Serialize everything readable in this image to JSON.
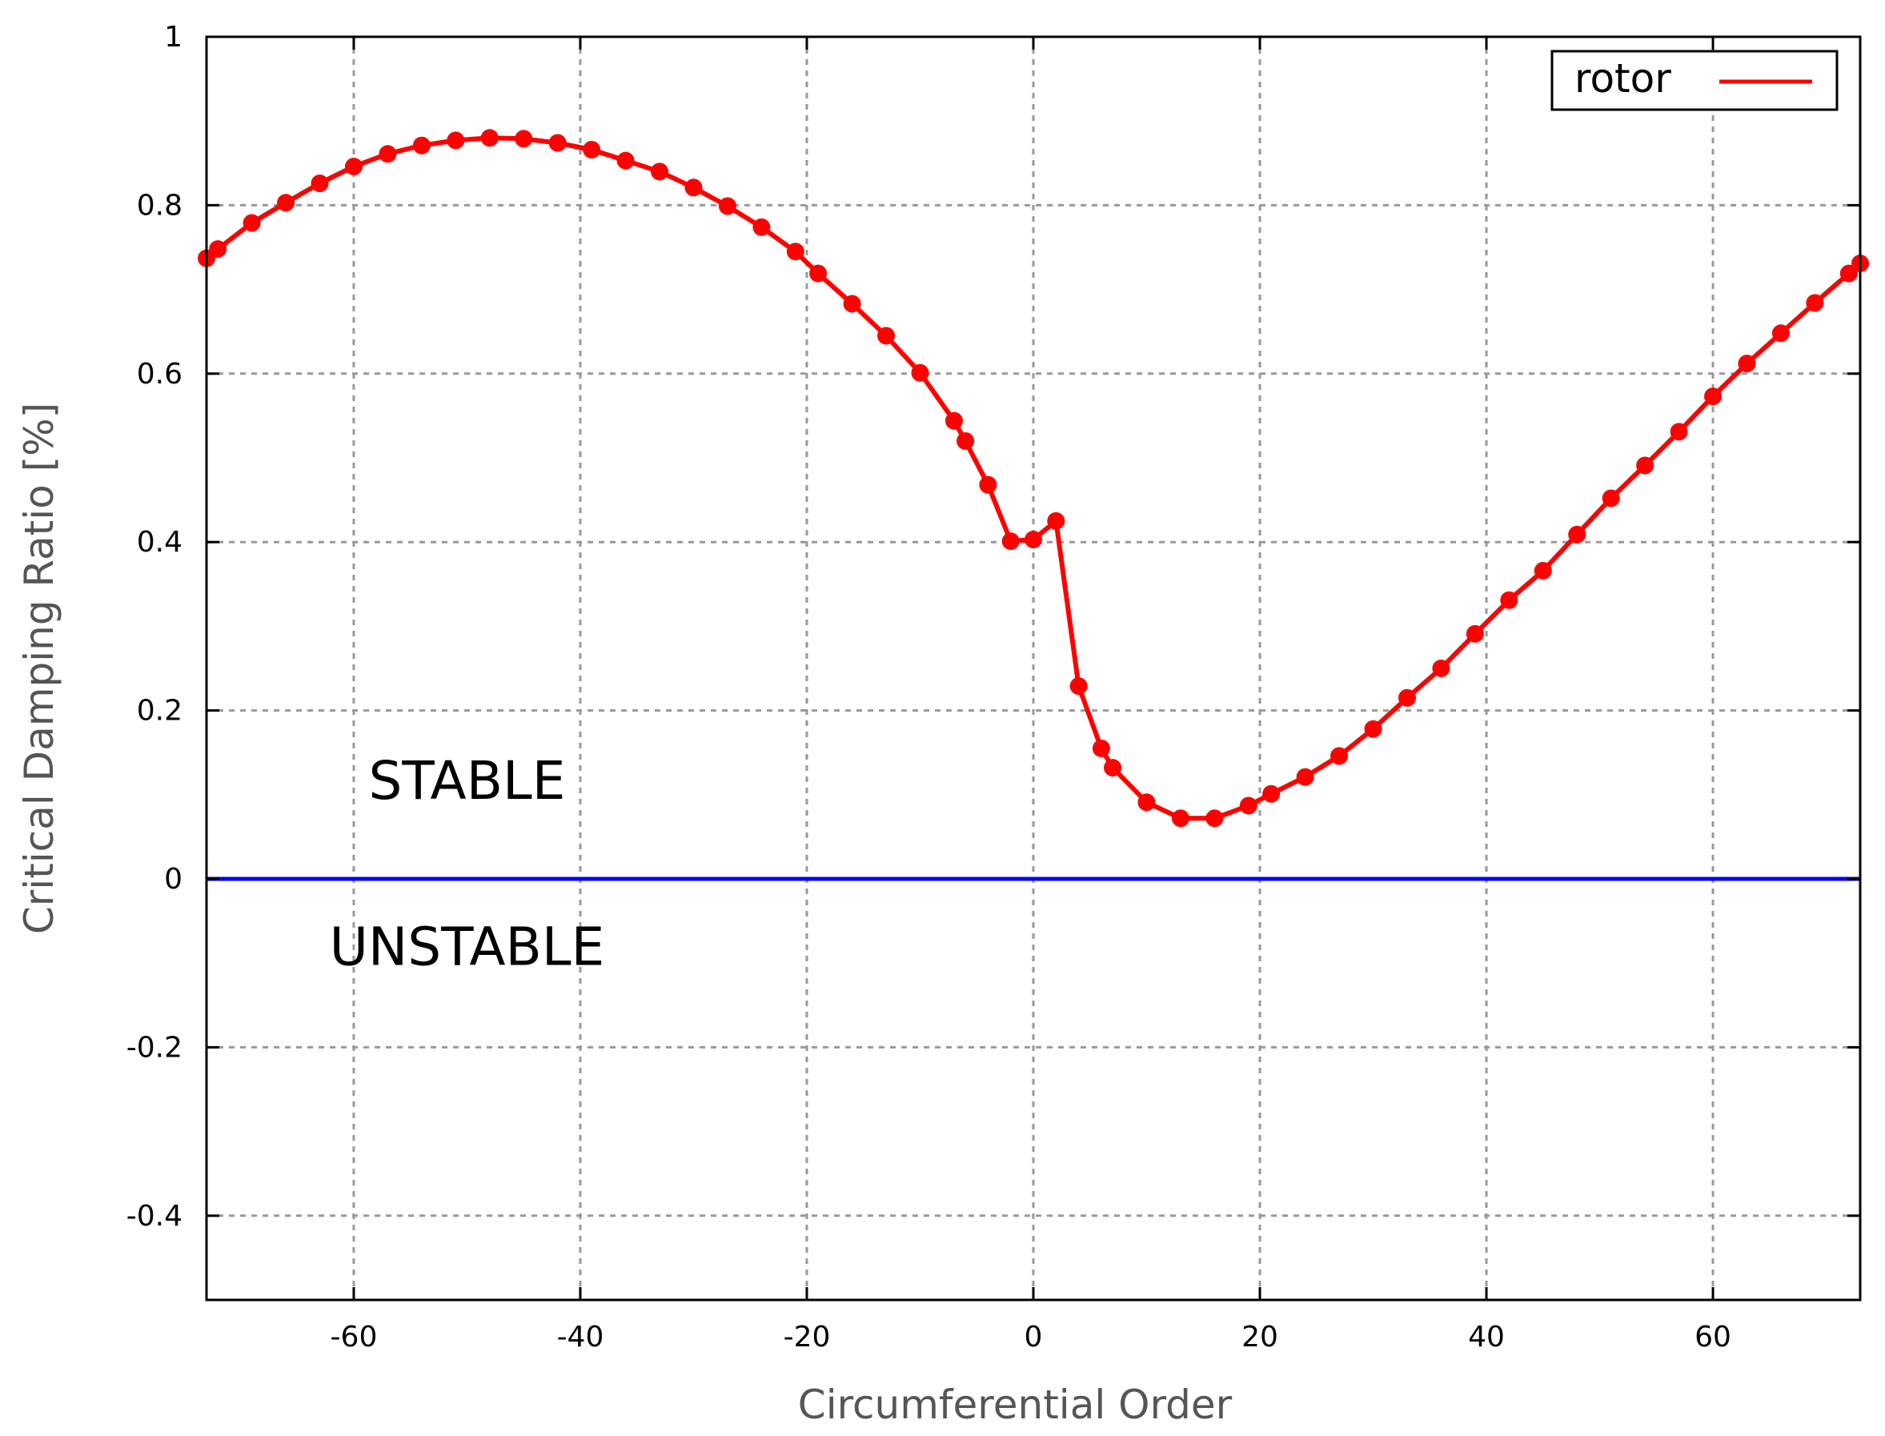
{
  "chart_data": {
    "type": "line",
    "xlabel": "Circumferential Order",
    "ylabel": "Critical Damping Ratio [%]",
    "xlim": [
      -73,
      73
    ],
    "ylim": [
      -0.5,
      1
    ],
    "xticks": [
      -60,
      -40,
      -20,
      0,
      20,
      40,
      60
    ],
    "yticks": [
      -0.4,
      -0.2,
      0,
      0.2,
      0.4,
      0.6,
      0.8,
      1
    ],
    "xtick_labels": [
      "-60",
      "-40",
      "-20",
      "0",
      "20",
      "40",
      "60"
    ],
    "ytick_labels": [
      "-0.4",
      "-0.2",
      "0",
      "0.2",
      "0.4",
      "0.6",
      "0.8",
      "1"
    ],
    "grid": true,
    "legend": {
      "position": "top-right",
      "entries": [
        "rotor"
      ]
    },
    "annotations": [
      {
        "text": "STABLE",
        "x": -50,
        "y": 0.095
      },
      {
        "text": "UNSTABLE",
        "x": -50,
        "y": -0.102
      }
    ],
    "reference_line": {
      "y": 0,
      "color": "#0000ee"
    },
    "series": [
      {
        "name": "rotor",
        "color": "#ff0000",
        "x": [
          -73,
          -72,
          -69,
          -66,
          -63,
          -60,
          -57,
          -54,
          -51,
          -48,
          -45,
          -42,
          -39,
          -36,
          -33,
          -30,
          -27,
          -24,
          -21,
          -19,
          -16,
          -13,
          -10,
          -7,
          -6,
          -4,
          -2,
          0,
          2,
          4,
          6,
          7,
          10,
          13,
          16,
          19,
          21,
          24,
          27,
          30,
          33,
          36,
          39,
          42,
          45,
          48,
          51,
          54,
          57,
          60,
          63,
          66,
          69,
          72,
          73
        ],
        "y": [
          0.737,
          0.748,
          0.779,
          0.803,
          0.826,
          0.846,
          0.861,
          0.871,
          0.877,
          0.88,
          0.879,
          0.874,
          0.866,
          0.853,
          0.84,
          0.821,
          0.799,
          0.774,
          0.745,
          0.719,
          0.683,
          0.645,
          0.601,
          0.544,
          0.52,
          0.468,
          0.401,
          0.403,
          0.425,
          0.229,
          0.155,
          0.132,
          0.091,
          0.072,
          0.072,
          0.087,
          0.101,
          0.121,
          0.146,
          0.178,
          0.215,
          0.25,
          0.291,
          0.331,
          0.366,
          0.409,
          0.452,
          0.491,
          0.531,
          0.573,
          0.612,
          0.648,
          0.684,
          0.719,
          0.731
        ]
      }
    ]
  }
}
